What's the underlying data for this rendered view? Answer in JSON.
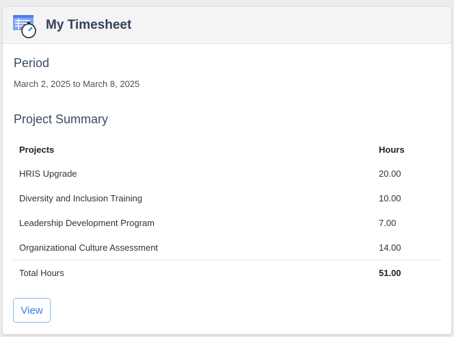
{
  "header": {
    "title": "My Timesheet",
    "icon": "timesheet-stopwatch-icon"
  },
  "period": {
    "heading": "Period",
    "range": "March 2, 2025 to March 8, 2025"
  },
  "summary": {
    "heading": "Project Summary",
    "columns": [
      "Projects",
      "Hours"
    ],
    "rows": [
      {
        "project": "HRIS Upgrade",
        "hours": "20.00"
      },
      {
        "project": "Diversity and Inclusion Training",
        "hours": "10.00"
      },
      {
        "project": "Leadership Development Program",
        "hours": "7.00"
      },
      {
        "project": "Organizational Culture Assessment",
        "hours": "14.00"
      }
    ],
    "total": {
      "label": "Total Hours",
      "hours": "51.00"
    }
  },
  "actions": {
    "view_label": "View"
  },
  "colors": {
    "accent": "#2f7be0",
    "heading": "#33415a"
  }
}
